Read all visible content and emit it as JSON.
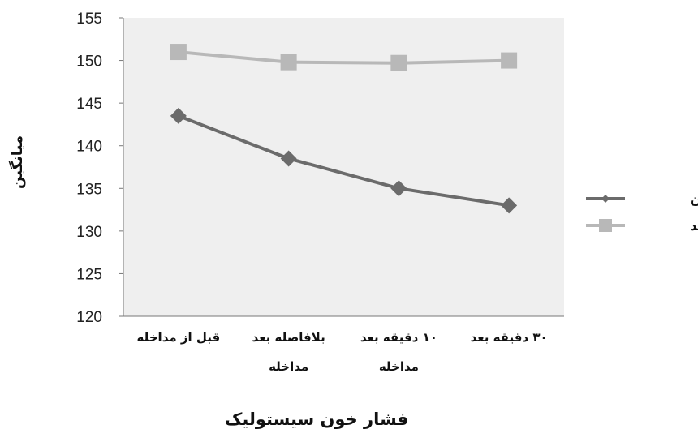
{
  "chart_data": {
    "type": "line",
    "categories": [
      [
        "قبل از مداخله"
      ],
      [
        "بلافاصله بعد",
        "مداخله"
      ],
      [
        "۱۰ دقیقه بعد",
        "مداخله"
      ],
      [
        "۳۰ دقیقه بعد"
      ]
    ],
    "series": [
      {
        "name": "آزمون",
        "values": [
          143.5,
          138.5,
          135,
          133
        ],
        "color": "#6b6b6b",
        "marker": "diamond"
      },
      {
        "name": "شاهد",
        "values": [
          151,
          149.8,
          149.7,
          150
        ],
        "color": "#b8b8b8",
        "marker": "square"
      }
    ],
    "xlabel": "فشار خون سیستولیک",
    "ylabel": "میانگین",
    "ylim": [
      120,
      155
    ],
    "yticks": [
      120,
      125,
      130,
      135,
      140,
      145,
      150,
      155
    ],
    "legend_position": "right",
    "plot_background": "#efefef"
  }
}
